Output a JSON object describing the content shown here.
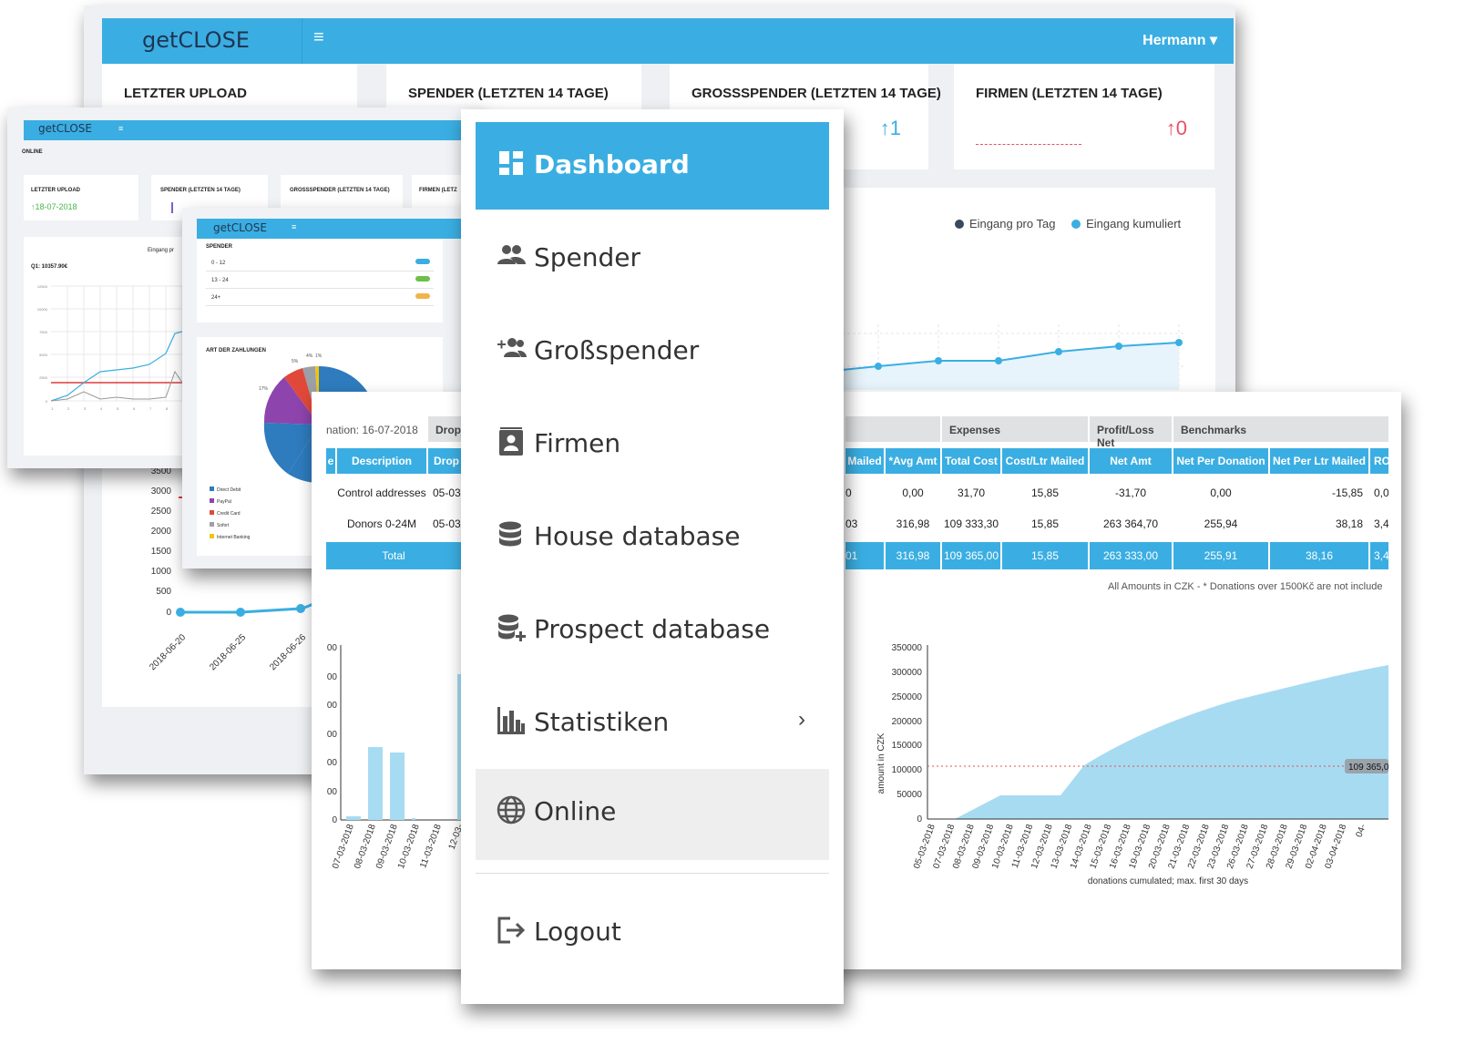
{
  "back": {
    "logo": "getCLOSE",
    "menu_icon": "≡",
    "user": "Hermann ▾",
    "cards": [
      {
        "title": "LETZTER UPLOAD",
        "value": ""
      },
      {
        "title": "SPENDER (LETZTEN 14 TAGE)",
        "value": ""
      },
      {
        "title": "GROSSSPENDER (LETZTEN 14 TAGE)",
        "value": "↑1"
      },
      {
        "title": "FIRMEN (LETZTEN 14 TAGE)",
        "value": "↑0"
      }
    ],
    "legend": {
      "series1": "Eingang pro Tag",
      "series2": "Eingang kumuliert"
    },
    "y_ticks": [
      "3500",
      "3000",
      "2500",
      "2000",
      "1500",
      "1000",
      "500",
      "0"
    ],
    "x_ticks": [
      "2018-06-20",
      "2018-06-25",
      "2018-06-26"
    ]
  },
  "small1": {
    "logo": "getCLOSE",
    "online": "ONLINE",
    "cards": [
      {
        "title": "LETZTER UPLOAD",
        "value": "↑18-07-2018"
      },
      {
        "title": "SPENDER (LETZTEN 14 TAGE)"
      },
      {
        "title": "GROSSSPENDER (LETZTEN 14 TAGE)"
      },
      {
        "title": "FIRMEN (LETZ"
      }
    ],
    "legend": "Eingang pr",
    "summary": "Q1: 10357.90€",
    "y_ticks": [
      "12500",
      "10000",
      "7500",
      "5000",
      "2500",
      "0"
    ],
    "x_ticks": [
      "1",
      "2",
      "3",
      "4",
      "5",
      "6",
      "7",
      "8"
    ]
  },
  "small2": {
    "logo": "getCLOSE",
    "section1": "SPENDER",
    "rows": [
      "0 - 12",
      "13 - 24",
      "24+"
    ],
    "section2": "ART DER ZAHLUNGEN",
    "pie_labels": [
      "17%",
      "5%",
      "4%",
      "1%"
    ],
    "legend": [
      "Direct Debit",
      "PayPal",
      "Credit Card",
      "Sofort",
      "Internet Banking"
    ]
  },
  "report": {
    "date_label": "nation: 16-07-2018",
    "groups": {
      "dropped": "Dropp",
      "expenses": "Expenses",
      "profit": "Profit/Loss Net",
      "bench": "Benchmarks"
    },
    "left_headers": [
      "e",
      "Description",
      "Drop"
    ],
    "right_headers": [
      "Mailed",
      "*Avg Amt",
      "Total Cost",
      "Cost/Ltr Mailed",
      "Net Amt",
      "Net Per Donation",
      "Net Per Ltr Mailed",
      "RO"
    ],
    "rows": [
      {
        "desc": "Control addresses",
        "drop": "05-03-",
        "mailed": "0",
        "avg": "0,00",
        "cost": "31,70",
        "cost_ltr": "15,85",
        "net": "-31,70",
        "net_don": "0,00",
        "net_ltr": "-15,85",
        "ro": "0,0"
      },
      {
        "desc": "Donors 0-24M",
        "drop": "05-03-",
        "mailed": "03",
        "avg": "316,98",
        "cost": "109 333,30",
        "cost_ltr": "15,85",
        "net": "263 364,70",
        "net_don": "255,94",
        "net_ltr": "38,18",
        "ro": "3,4"
      }
    ],
    "total": {
      "label": "Total",
      "mailed": "01",
      "avg": "316,98",
      "cost": "109 365,00",
      "cost_ltr": "15,85",
      "net": "263 333,00",
      "net_don": "255,91",
      "net_ltr": "38,16",
      "ro": "3,4"
    },
    "footnote": "All Amounts in CZK - * Donations over 1500Kč are not include",
    "bar_chart": {
      "y_ticks": [
        "00",
        "00",
        "00",
        "00",
        "00",
        "00",
        "0"
      ],
      "x_ticks": [
        "07-03-2018",
        "08-03-2018",
        "09-03-2018",
        "10-03-2018",
        "11-03-2018",
        "12-03-"
      ]
    },
    "area_chart": {
      "y_ticks": [
        "350000",
        "300000",
        "250000",
        "200000",
        "150000",
        "100000",
        "50000",
        "0"
      ],
      "ylabel": "amount in CZK",
      "xlabel": "donations cumulated; max. first 30 days",
      "ref_label": "109 365,0",
      "x_ticks": [
        "05-03-2018",
        "07-03-2018",
        "08-03-2018",
        "09-03-2018",
        "10-03-2018",
        "11-03-2018",
        "12-03-2018",
        "13-03-2018",
        "14-03-2018",
        "15-03-2018",
        "16-03-2018",
        "19-03-2018",
        "20-03-2018",
        "21-03-2018",
        "22-03-2018",
        "23-03-2018",
        "26-03-2018",
        "27-03-2018",
        "28-03-2018",
        "29-03-2018",
        "02-04-2018",
        "03-04-2018",
        "04-"
      ]
    }
  },
  "sidebar": {
    "items": [
      {
        "label": "Dashboard",
        "icon": "dashboard-icon"
      },
      {
        "label": "Spender",
        "icon": "users-icon"
      },
      {
        "label": "Großspender",
        "icon": "user-plus-icon"
      },
      {
        "label": "Firmen",
        "icon": "address-book-icon"
      },
      {
        "label": "House database",
        "icon": "database-icon"
      },
      {
        "label": "Prospect database",
        "icon": "database-plus-icon"
      },
      {
        "label": "Statistiken",
        "icon": "bar-chart-icon"
      },
      {
        "label": "Online",
        "icon": "globe-icon"
      },
      {
        "label": "Logout",
        "icon": "logout-icon"
      }
    ],
    "chevron": "›"
  },
  "colors": {
    "brand": "#3aaee2",
    "dark": "#1f3552",
    "up_blue": "#3aaee2",
    "up_red": "#e8506a"
  }
}
